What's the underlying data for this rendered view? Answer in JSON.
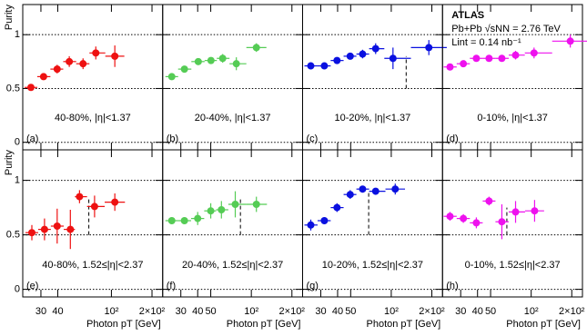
{
  "chart_data": [
    {
      "type": "errorbar",
      "label": "40-80%, |η|<1.37",
      "panel_label": "(a)",
      "ylabel": "Purity",
      "color": "#ee1111",
      "xlim": [
        22,
        240
      ],
      "ylim": [
        -0.07,
        1.28
      ],
      "yticks": [
        0,
        0.5,
        1
      ],
      "show_ytick_labels": true,
      "x": [
        25.3,
        31.4,
        39.6,
        48.7,
        61.6,
        76.6,
        106
      ],
      "values": [
        0.51,
        0.61,
        0.68,
        0.75,
        0.73,
        0.83,
        0.8
      ],
      "yerr": [
        0.03,
        0.03,
        0.04,
        0.05,
        0.05,
        0.06,
        0.1
      ]
    },
    {
      "type": "errorbar",
      "label": "20-40%, |η|<1.37",
      "panel_label": "(b)",
      "color": "#55cc55",
      "xlim": [
        22,
        240
      ],
      "ylim": [
        -0.07,
        1.28
      ],
      "yticks": [
        0,
        0.5,
        1
      ],
      "show_ytick_labels": false,
      "x": [
        25.7,
        31.9,
        40.4,
        50.2,
        61.3,
        77.4,
        109
      ],
      "values": [
        0.61,
        0.68,
        0.75,
        0.76,
        0.78,
        0.73,
        0.88
      ],
      "yerr": [
        0.03,
        0.03,
        0.03,
        0.03,
        0.04,
        0.06,
        0.04
      ]
    },
    {
      "type": "errorbar",
      "label": "10-20%, |η|<1.37",
      "panel_label": "(c)",
      "color": "#0a10e0",
      "xlim": [
        22,
        240
      ],
      "ylim": [
        -0.07,
        1.28
      ],
      "yticks": [
        0,
        0.5,
        1
      ],
      "show_ytick_labels": false,
      "x": [
        25.3,
        31.9,
        39.6,
        49.6,
        61.3,
        76.6,
        103,
        190
      ],
      "values": [
        0.71,
        0.71,
        0.76,
        0.8,
        0.82,
        0.87,
        0.78,
        0.88
      ],
      "yerr": [
        0.03,
        0.03,
        0.03,
        0.03,
        0.04,
        0.05,
        0.1,
        0.07
      ],
      "vline": {
        "x": 129,
        "ymin": 0.5,
        "ymax": 0.8
      }
    },
    {
      "type": "errorbar",
      "label": "0-10%, |η|<1.37",
      "panel_label": "(d)",
      "color": "#ee11ee",
      "xlim": [
        22,
        240
      ],
      "ylim": [
        -0.07,
        1.28
      ],
      "yticks": [
        0,
        0.5,
        1
      ],
      "show_ytick_labels": false,
      "x": [
        25,
        31.4,
        39.2,
        48.7,
        60.6,
        76.6,
        105,
        195
      ],
      "values": [
        0.7,
        0.73,
        0.78,
        0.78,
        0.78,
        0.81,
        0.83,
        0.94
      ],
      "yerr": [
        0.03,
        0.02,
        0.03,
        0.03,
        0.03,
        0.04,
        0.05,
        0.06
      ],
      "annotations": [
        "ATLAS",
        "Pb+Pb √sNN = 2.76 TeV",
        "Lint = 0.14 nb⁻¹"
      ]
    },
    {
      "type": "errorbar",
      "label": "40-80%, 1.52≤|η|<2.37",
      "panel_label": "(e)",
      "ylabel": "Purity",
      "xlabel": "Photon pT [GeV]",
      "color": "#ee1111",
      "xlim": [
        22,
        240
      ],
      "ylim": [
        -0.07,
        1.28
      ],
      "yticks": [
        0,
        0.5,
        1
      ],
      "show_ytick_labels": true,
      "xticks": [
        30,
        40,
        {
          "value": 100,
          "label": "10²"
        },
        {
          "value": 200,
          "label": "2×10²"
        }
      ],
      "x": [
        25.7,
        31.9,
        39.6,
        49.6,
        58,
        75,
        106
      ],
      "values": [
        0.52,
        0.55,
        0.58,
        0.55,
        0.85,
        0.76,
        0.8
      ],
      "yerr": [
        0.07,
        0.1,
        0.16,
        0.18,
        0.06,
        0.1,
        0.08
      ],
      "vline": {
        "x": 68,
        "ymin": 0.5,
        "ymax": 0.85
      }
    },
    {
      "type": "errorbar",
      "label": "20-40%, 1.52≤|η|<2.37",
      "panel_label": "(f)",
      "xlabel": "Photon pT [GeV]",
      "color": "#55cc55",
      "xlim": [
        22,
        240
      ],
      "ylim": [
        -0.07,
        1.28
      ],
      "yticks": [
        0,
        0.5,
        1
      ],
      "show_ytick_labels": false,
      "xticks": [
        30,
        40,
        50,
        {
          "value": 100,
          "label": "10²"
        },
        {
          "value": 200,
          "label": "2×10²"
        }
      ],
      "x": [
        25.7,
        31.9,
        40,
        50,
        60,
        76,
        109
      ],
      "values": [
        0.63,
        0.63,
        0.65,
        0.72,
        0.73,
        0.78,
        0.78
      ],
      "yerr": [
        0.03,
        0.03,
        0.06,
        0.07,
        0.08,
        0.12,
        0.07
      ],
      "vline": {
        "x": 83,
        "ymin": 0.5,
        "ymax": 0.85
      }
    },
    {
      "type": "errorbar",
      "label": "10-20%, 1.52≤|η|<2.37",
      "panel_label": "(g)",
      "xlabel": "Photon pT [GeV]",
      "color": "#0a10e0",
      "xlim": [
        22,
        240
      ],
      "ylim": [
        -0.07,
        1.28
      ],
      "yticks": [
        0,
        0.5,
        1
      ],
      "show_ytick_labels": false,
      "xticks": [
        30,
        40,
        50,
        {
          "value": 100,
          "label": "10²"
        },
        {
          "value": 200,
          "label": "2×10²"
        }
      ],
      "x": [
        25.3,
        31.9,
        39.6,
        49.6,
        61.3,
        76.6,
        107
      ],
      "values": [
        0.59,
        0.63,
        0.75,
        0.87,
        0.92,
        0.9,
        0.92
      ],
      "yerr": [
        0.05,
        0.03,
        0.04,
        0.04,
        0.03,
        0.03,
        0.05
      ],
      "vline": {
        "x": 68,
        "ymin": 0.5,
        "ymax": 0.9
      }
    },
    {
      "type": "errorbar",
      "label": "0-10%, 1.52≤|η|<2.37",
      "panel_label": "(h)",
      "xlabel": "Photon pT [GeV]",
      "color": "#ee11ee",
      "xlim": [
        22,
        240
      ],
      "ylim": [
        -0.07,
        1.28
      ],
      "yticks": [
        0,
        0.5,
        1
      ],
      "show_ytick_labels": false,
      "xticks": [
        30,
        40,
        50,
        {
          "value": 100,
          "label": "10²"
        },
        {
          "value": 200,
          "label": "2×10²"
        }
      ],
      "x": [
        25,
        31.4,
        39.2,
        48.7,
        60.6,
        76.6,
        106
      ],
      "values": [
        0.67,
        0.65,
        0.61,
        0.81,
        0.62,
        0.71,
        0.72
      ],
      "yerr": [
        0.04,
        0.04,
        0.05,
        0.04,
        0.16,
        0.1,
        0.1
      ],
      "vline": {
        "x": 66,
        "ymin": 0.5,
        "ymax": 0.75
      }
    }
  ]
}
